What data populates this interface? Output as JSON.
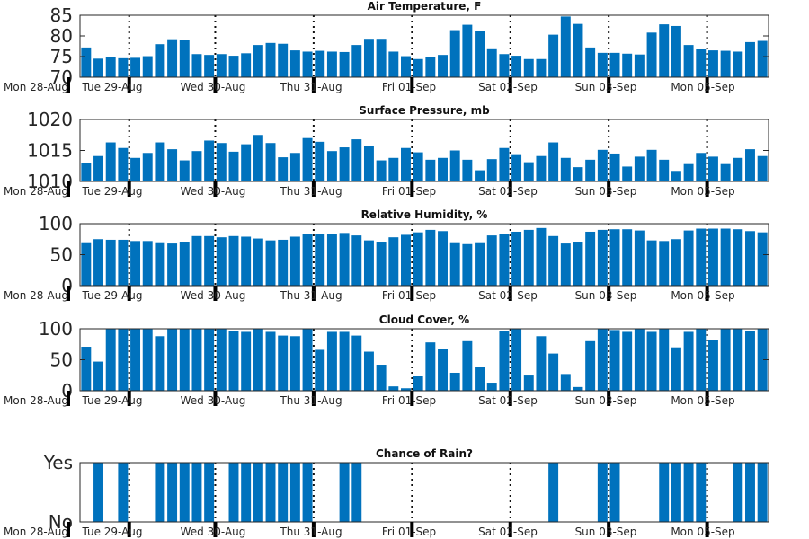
{
  "colors": {
    "bar": "#0072BD",
    "axis": "#262626",
    "background": "#ffffff"
  },
  "chart_data": [
    {
      "type": "bar",
      "title": "Air Temperature, F",
      "ylim": [
        70,
        85
      ],
      "yticks": [
        "70",
        "75",
        "80",
        "85"
      ],
      "xticks": [
        "Mon 28-Aug",
        "Tue 29-Aug",
        "Wed 30-Aug",
        "Thu 31-Aug",
        "Fri 01-Sep",
        "Sat 02-Sep",
        "Sun 03-Sep",
        "Mon 05-Sep"
      ],
      "values": [
        77.2,
        74.5,
        74.8,
        74.6,
        74.7,
        75.1,
        78.0,
        79.2,
        79.0,
        75.6,
        75.4,
        75.6,
        75.2,
        75.8,
        77.8,
        78.3,
        78.1,
        76.5,
        76.2,
        76.4,
        76.2,
        76.1,
        77.8,
        79.3,
        79.3,
        76.2,
        75.1,
        74.4,
        75.0,
        75.4,
        81.4,
        82.7,
        81.3,
        77.0,
        75.6,
        75.2,
        74.4,
        74.4,
        80.3,
        84.7,
        82.9,
        77.2,
        75.9,
        75.9,
        75.7,
        75.5,
        80.8,
        82.8,
        82.4,
        77.8,
        76.9,
        76.5,
        76.4,
        76.2,
        78.5,
        78.8
      ]
    },
    {
      "type": "bar",
      "title": "Surface Pressure, mb",
      "ylim": [
        1010,
        1020
      ],
      "yticks": [
        "1010",
        "1015",
        "1020"
      ],
      "xticks": [
        "Mon 28-Aug",
        "Tue 29-Aug",
        "Wed 30-Aug",
        "Thu 31-Aug",
        "Fri 01-Sep",
        "Sat 02-Sep",
        "Sun 03-Sep",
        "Mon 05-Sep"
      ],
      "values": [
        1013.0,
        1014.1,
        1016.3,
        1015.4,
        1013.8,
        1014.6,
        1016.3,
        1015.2,
        1013.4,
        1014.9,
        1016.6,
        1016.2,
        1014.8,
        1016.0,
        1017.5,
        1016.2,
        1013.9,
        1014.6,
        1017.0,
        1016.4,
        1014.9,
        1015.5,
        1016.8,
        1015.7,
        1013.4,
        1013.8,
        1015.4,
        1014.7,
        1013.5,
        1013.8,
        1015.0,
        1013.5,
        1011.8,
        1013.6,
        1015.4,
        1014.4,
        1013.1,
        1014.1,
        1016.3,
        1013.8,
        1012.3,
        1013.5,
        1015.1,
        1014.5,
        1012.4,
        1014.0,
        1015.1,
        1013.5,
        1011.7,
        1012.8,
        1014.6,
        1014.0,
        1012.8,
        1013.8,
        1015.2,
        1014.1
      ]
    },
    {
      "type": "bar",
      "title": "Relative Humidity, %",
      "ylim": [
        0,
        100
      ],
      "yticks": [
        "0",
        "50",
        "100"
      ],
      "xticks": [
        "Mon 28-Aug",
        "Tue 29-Aug",
        "Wed 30-Aug",
        "Thu 31-Aug",
        "Fri 01-Sep",
        "Sat 02-Sep",
        "Sun 03-Sep",
        "Mon 05-Sep"
      ],
      "values": [
        70,
        75,
        74,
        74,
        72,
        72,
        70,
        68,
        71,
        80,
        80,
        78,
        80,
        79,
        76,
        73,
        74,
        79,
        84,
        83,
        83,
        85,
        81,
        73,
        71,
        78,
        82,
        86,
        90,
        88,
        70,
        67,
        70,
        81,
        84,
        87,
        90,
        93,
        80,
        68,
        71,
        87,
        90,
        91,
        91,
        89,
        73,
        72,
        75,
        89,
        92,
        92,
        92,
        91,
        88,
        86
      ]
    },
    {
      "type": "bar",
      "title": "Cloud Cover, %",
      "ylim": [
        0,
        100
      ],
      "yticks": [
        "0",
        "50",
        "100"
      ],
      "xticks": [
        "Mon 28-Aug",
        "Tue 29-Aug",
        "Wed 30-Aug",
        "Thu 31-Aug",
        "Fri 01-Sep",
        "Sat 02-Sep",
        "Sun 03-Sep",
        "Mon 05-Sep"
      ],
      "values": [
        71,
        47,
        100,
        100,
        100,
        100,
        88,
        100,
        100,
        100,
        100,
        100,
        97,
        95,
        100,
        95,
        89,
        88,
        100,
        66,
        95,
        95,
        89,
        63,
        42,
        7,
        4,
        24,
        78,
        68,
        29,
        80,
        38,
        13,
        97,
        100,
        26,
        88,
        60,
        27,
        6,
        80,
        100,
        98,
        95,
        100,
        95,
        100,
        70,
        95,
        100,
        82,
        100,
        100,
        97,
        100
      ]
    },
    {
      "type": "bar",
      "title": "Chance of Rain?",
      "ylim": [
        0,
        1
      ],
      "yticks": [
        "No",
        "Yes"
      ],
      "xticks": [
        "Mon 28-Aug",
        "Tue 29-Aug",
        "Wed 30-Aug",
        "Thu 31-Aug",
        "Fri 01-Sep",
        "Sat 02-Sep",
        "Sun 03-Sep",
        "Mon 05-Sep"
      ],
      "values": [
        0,
        1,
        0,
        1,
        0,
        0,
        1,
        1,
        1,
        1,
        1,
        0,
        1,
        1,
        1,
        1,
        1,
        1,
        1,
        0,
        0,
        1,
        1,
        0,
        0,
        0,
        0,
        0,
        0,
        0,
        0,
        0,
        0,
        0,
        0,
        0,
        0,
        0,
        1,
        0,
        0,
        0,
        1,
        1,
        0,
        0,
        0,
        1,
        1,
        1,
        1,
        0,
        0,
        1,
        1,
        1
      ]
    }
  ]
}
